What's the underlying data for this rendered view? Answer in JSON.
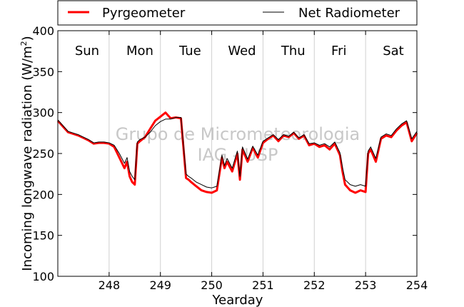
{
  "chart_data": {
    "type": "line",
    "xlabel": "Yearday",
    "ylabel": "Incoming longwave radiation (W/m²)",
    "ylabel_main": "Incoming longwave radiation (W/m",
    "ylabel_sup": "2",
    "ylabel_close": ")",
    "xlim": [
      247,
      254
    ],
    "ylim": [
      100,
      400
    ],
    "xticks": [
      248,
      249,
      250,
      251,
      252,
      253,
      254
    ],
    "yticks": [
      100,
      150,
      200,
      250,
      300,
      350,
      400
    ],
    "grid": "vertical at day boundaries",
    "legend_placement": "top, above plot",
    "watermark": [
      "Grupo de Micrometeorologia",
      "IAG - USP"
    ],
    "days": [
      {
        "label": "Sun",
        "x": 247.57
      },
      {
        "label": "Mon",
        "x": 248.6
      },
      {
        "label": "Tue",
        "x": 249.58
      },
      {
        "label": "Wed",
        "x": 250.59
      },
      {
        "label": "Thu",
        "x": 251.59
      },
      {
        "label": "Fri",
        "x": 252.48
      },
      {
        "label": "Sat",
        "x": 253.54
      }
    ],
    "series": [
      {
        "name": "Pyrgeometer",
        "color": "#ff0000",
        "x": [
          247.0,
          247.1,
          247.2,
          247.3,
          247.4,
          247.5,
          247.6,
          247.7,
          247.8,
          247.9,
          248.0,
          248.1,
          248.2,
          248.3,
          248.35,
          248.4,
          248.45,
          248.5,
          248.55,
          248.6,
          248.7,
          248.8,
          248.9,
          249.0,
          249.1,
          249.2,
          249.3,
          249.4,
          249.5,
          249.55,
          249.6,
          249.7,
          249.8,
          249.9,
          250.0,
          250.1,
          250.2,
          250.25,
          250.3,
          250.4,
          250.5,
          250.55,
          250.6,
          250.7,
          250.8,
          250.9,
          251.0,
          251.1,
          251.2,
          251.3,
          251.4,
          251.5,
          251.6,
          251.7,
          251.8,
          251.9,
          252.0,
          252.1,
          252.2,
          252.3,
          252.4,
          252.5,
          252.55,
          252.6,
          252.7,
          252.8,
          252.9,
          253.0,
          253.05,
          253.1,
          253.2,
          253.3,
          253.4,
          253.5,
          253.6,
          253.7,
          253.8,
          253.9,
          254.0
        ],
        "y": [
          290,
          283,
          276,
          274,
          272,
          269,
          266,
          262,
          263,
          263,
          262,
          258,
          245,
          232,
          240,
          222,
          215,
          212,
          262,
          265,
          270,
          280,
          290,
          295,
          300,
          293,
          294,
          293,
          220,
          218,
          215,
          210,
          205,
          203,
          202,
          205,
          245,
          232,
          240,
          228,
          250,
          218,
          255,
          240,
          257,
          245,
          263,
          268,
          272,
          265,
          272,
          270,
          275,
          268,
          272,
          260,
          262,
          258,
          260,
          255,
          262,
          248,
          228,
          212,
          205,
          202,
          205,
          203,
          250,
          255,
          240,
          268,
          272,
          270,
          278,
          284,
          288,
          265,
          275
        ]
      },
      {
        "name": "Net Radiometer",
        "color": "#000000",
        "x": [
          247.0,
          247.1,
          247.2,
          247.3,
          247.4,
          247.5,
          247.6,
          247.7,
          247.8,
          247.9,
          248.0,
          248.1,
          248.2,
          248.3,
          248.35,
          248.4,
          248.45,
          248.5,
          248.55,
          248.6,
          248.7,
          248.8,
          248.9,
          249.0,
          249.1,
          249.2,
          249.3,
          249.4,
          249.5,
          249.55,
          249.6,
          249.7,
          249.8,
          249.9,
          250.0,
          250.1,
          250.2,
          250.25,
          250.3,
          250.4,
          250.5,
          250.55,
          250.6,
          250.7,
          250.8,
          250.9,
          251.0,
          251.1,
          251.2,
          251.3,
          251.4,
          251.5,
          251.6,
          251.7,
          251.8,
          251.9,
          252.0,
          252.1,
          252.2,
          252.3,
          252.4,
          252.5,
          252.55,
          252.6,
          252.7,
          252.8,
          252.9,
          253.0,
          253.05,
          253.1,
          253.2,
          253.3,
          253.4,
          253.5,
          253.6,
          253.7,
          253.8,
          253.9,
          254.0
        ],
        "y": [
          291,
          284,
          277,
          275,
          273,
          270,
          267,
          263,
          264,
          264,
          263,
          260,
          250,
          238,
          245,
          228,
          222,
          218,
          264,
          267,
          270,
          276,
          284,
          289,
          292,
          292,
          294,
          294,
          225,
          222,
          220,
          215,
          212,
          209,
          208,
          210,
          248,
          235,
          244,
          232,
          253,
          222,
          258,
          243,
          259,
          248,
          265,
          269,
          273,
          267,
          273,
          271,
          276,
          269,
          273,
          262,
          263,
          260,
          262,
          258,
          264,
          251,
          233,
          218,
          212,
          210,
          212,
          210,
          253,
          258,
          244,
          270,
          274,
          272,
          280,
          286,
          290,
          268,
          277
        ]
      }
    ]
  }
}
